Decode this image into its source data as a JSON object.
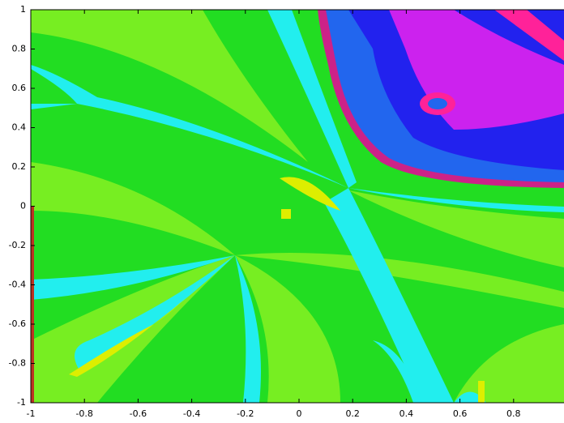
{
  "chart_data": {
    "type": "image",
    "xlim": [
      -1,
      1
    ],
    "ylim": [
      -1,
      1
    ],
    "xticks": [
      -1,
      -0.8,
      -0.6,
      -0.4,
      -0.2,
      0,
      0.2,
      0.4,
      0.6,
      0.8
    ],
    "yticks": [
      -1,
      -0.8,
      -0.6,
      -0.4,
      -0.2,
      0,
      0.2,
      0.4,
      0.6,
      0.8,
      1
    ]
  }
}
